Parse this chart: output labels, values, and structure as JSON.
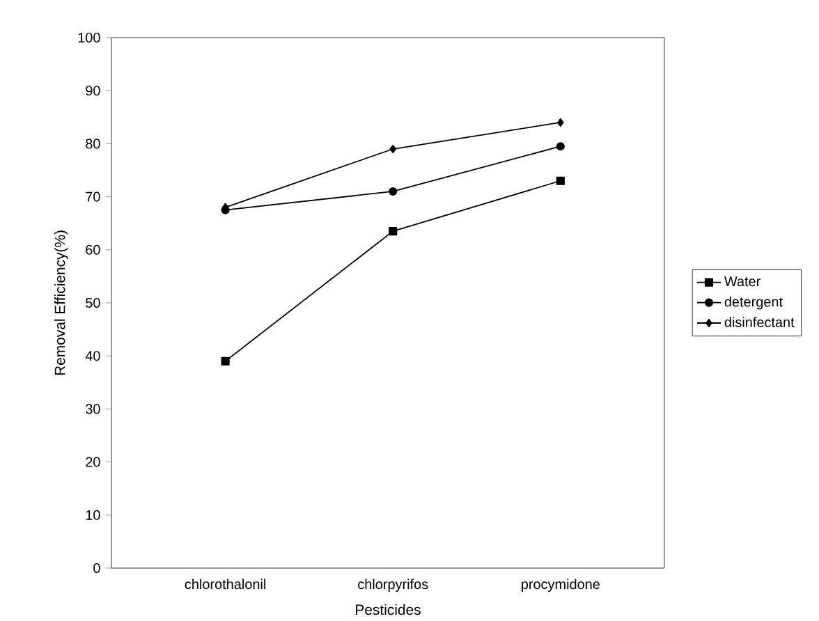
{
  "chart_data": {
    "type": "line",
    "xlabel": "Pesticides",
    "ylabel": "Removal Efficiency(%)",
    "categories": [
      "chlorothalonil",
      "chlorpyrifos",
      "procymidone"
    ],
    "series": [
      {
        "name": "Water",
        "color": "#000000",
        "marker": "square",
        "values": [
          39,
          63.5,
          73
        ]
      },
      {
        "name": "detergent",
        "color": "#000000",
        "marker": "circle",
        "values": [
          67.5,
          71,
          79.5
        ]
      },
      {
        "name": "disinfectant",
        "color": "#000000",
        "marker": "diamond",
        "values": [
          68,
          79,
          84
        ]
      }
    ],
    "ylim": [
      0,
      100
    ],
    "yticks": [
      0,
      10,
      20,
      30,
      40,
      50,
      60,
      70,
      80,
      90,
      100
    ],
    "grid": false,
    "legend": "right",
    "line_style": "solid"
  }
}
